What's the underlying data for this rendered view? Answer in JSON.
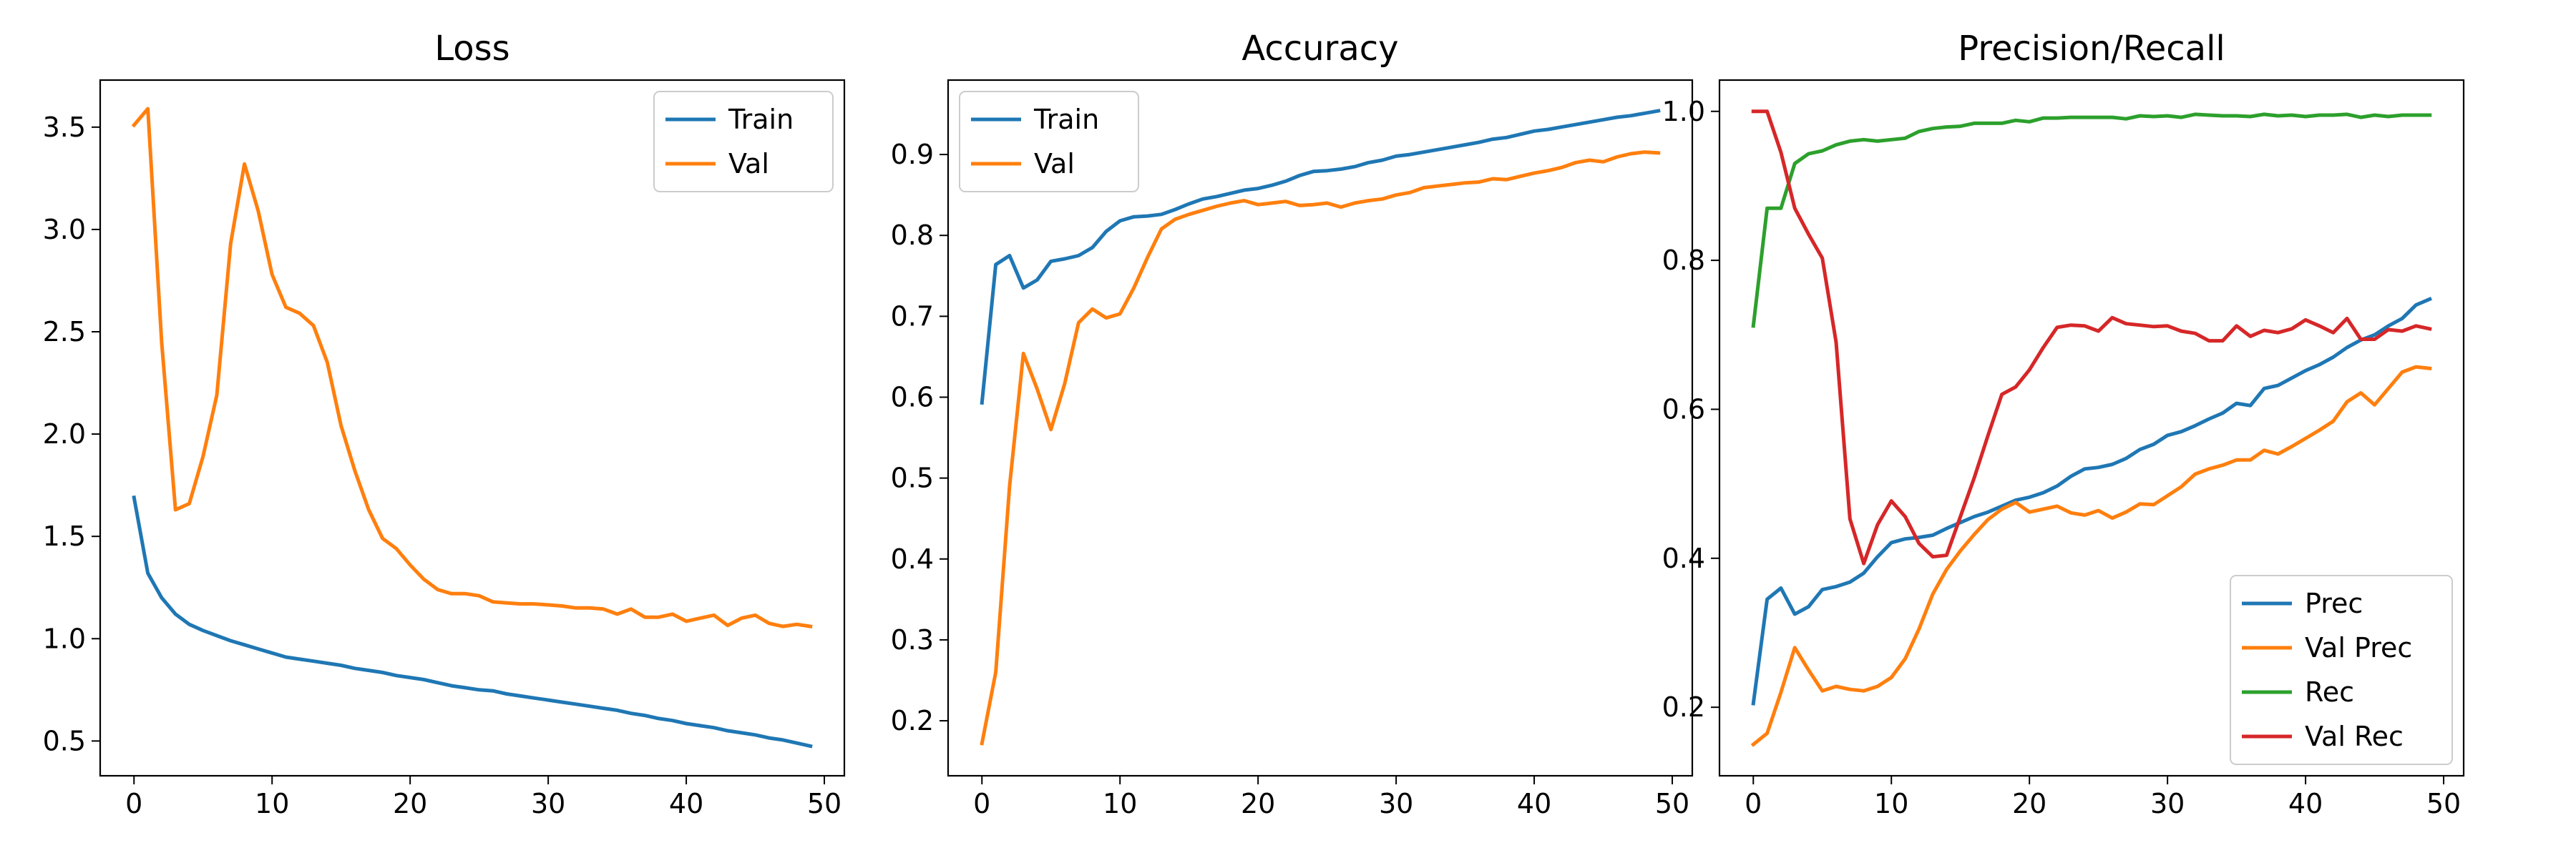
{
  "colors": {
    "blue": "#1f77b4",
    "orange": "#ff7f0e",
    "green": "#2ca02c",
    "red": "#d62728"
  },
  "chart_data": [
    {
      "type": "line",
      "title": "Loss",
      "xlabel": "",
      "ylabel": "",
      "xlim": [
        -2.45,
        51.45
      ],
      "ylim": [
        0.33,
        3.73
      ],
      "xticks": [
        0,
        10,
        20,
        30,
        40,
        50
      ],
      "yticks": [
        0.5,
        1.0,
        1.5,
        2.0,
        2.5,
        3.0,
        3.5
      ],
      "ytick_labels": [
        "0.5",
        "1.0",
        "1.5",
        "2.0",
        "2.5",
        "3.0",
        "3.5"
      ],
      "legend_position": "upper right",
      "x": [
        0,
        1,
        2,
        3,
        4,
        5,
        6,
        7,
        8,
        9,
        10,
        11,
        12,
        13,
        14,
        15,
        16,
        17,
        18,
        19,
        20,
        21,
        22,
        23,
        24,
        25,
        26,
        27,
        28,
        29,
        30,
        31,
        32,
        33,
        34,
        35,
        36,
        37,
        38,
        39,
        40,
        41,
        42,
        43,
        44,
        45,
        46,
        47,
        48,
        49
      ],
      "series": [
        {
          "name": "Train",
          "color": "#1f77b4",
          "values": [
            1.69,
            1.32,
            1.2,
            1.12,
            1.07,
            1.04,
            1.015,
            0.99,
            0.97,
            0.95,
            0.93,
            0.91,
            0.9,
            0.89,
            0.88,
            0.87,
            0.855,
            0.845,
            0.835,
            0.82,
            0.81,
            0.8,
            0.785,
            0.77,
            0.76,
            0.75,
            0.745,
            0.73,
            0.72,
            0.71,
            0.7,
            0.69,
            0.68,
            0.67,
            0.66,
            0.65,
            0.635,
            0.625,
            0.61,
            0.6,
            0.585,
            0.575,
            0.565,
            0.55,
            0.54,
            0.53,
            0.515,
            0.505,
            0.49,
            0.475
          ]
        },
        {
          "name": "Val",
          "color": "#ff7f0e",
          "values": [
            3.51,
            3.59,
            2.45,
            1.63,
            1.66,
            1.89,
            2.19,
            2.93,
            3.32,
            3.09,
            2.78,
            2.62,
            2.59,
            2.53,
            2.35,
            2.04,
            1.82,
            1.63,
            1.49,
            1.44,
            1.36,
            1.29,
            1.24,
            1.22,
            1.22,
            1.21,
            1.18,
            1.175,
            1.17,
            1.17,
            1.165,
            1.16,
            1.15,
            1.15,
            1.145,
            1.12,
            1.145,
            1.105,
            1.105,
            1.12,
            1.085,
            1.1,
            1.115,
            1.065,
            1.1,
            1.115,
            1.075,
            1.06,
            1.07,
            1.06
          ]
        }
      ]
    },
    {
      "type": "line",
      "title": "Accuracy",
      "xlabel": "",
      "ylabel": "",
      "xlim": [
        -2.45,
        51.45
      ],
      "ylim": [
        0.132,
        0.992
      ],
      "xticks": [
        0,
        10,
        20,
        30,
        40,
        50
      ],
      "yticks": [
        0.2,
        0.3,
        0.4,
        0.5,
        0.6,
        0.7,
        0.8,
        0.9
      ],
      "ytick_labels": [
        "0.2",
        "0.3",
        "0.4",
        "0.5",
        "0.6",
        "0.7",
        "0.8",
        "0.9"
      ],
      "legend_position": "upper left",
      "x": [
        0,
        1,
        2,
        3,
        4,
        5,
        6,
        7,
        8,
        9,
        10,
        11,
        12,
        13,
        14,
        15,
        16,
        17,
        18,
        19,
        20,
        21,
        22,
        23,
        24,
        25,
        26,
        27,
        28,
        29,
        30,
        31,
        32,
        33,
        34,
        35,
        36,
        37,
        38,
        39,
        40,
        41,
        42,
        43,
        44,
        45,
        46,
        47,
        48,
        49
      ],
      "series": [
        {
          "name": "Train",
          "color": "#1f77b4",
          "values": [
            0.593,
            0.764,
            0.775,
            0.735,
            0.745,
            0.768,
            0.771,
            0.775,
            0.785,
            0.805,
            0.818,
            0.823,
            0.824,
            0.826,
            0.832,
            0.839,
            0.845,
            0.848,
            0.852,
            0.856,
            0.858,
            0.862,
            0.867,
            0.874,
            0.879,
            0.88,
            0.882,
            0.885,
            0.89,
            0.893,
            0.898,
            0.9,
            0.903,
            0.906,
            0.909,
            0.912,
            0.915,
            0.919,
            0.921,
            0.925,
            0.929,
            0.931,
            0.934,
            0.937,
            0.94,
            0.943,
            0.946,
            0.948,
            0.951,
            0.954
          ]
        },
        {
          "name": "Val",
          "color": "#ff7f0e",
          "values": [
            0.172,
            0.26,
            0.49,
            0.654,
            0.61,
            0.56,
            0.617,
            0.692,
            0.709,
            0.698,
            0.703,
            0.735,
            0.773,
            0.808,
            0.82,
            0.826,
            0.831,
            0.836,
            0.84,
            0.843,
            0.838,
            0.84,
            0.842,
            0.837,
            0.838,
            0.84,
            0.835,
            0.84,
            0.843,
            0.845,
            0.85,
            0.853,
            0.859,
            0.861,
            0.863,
            0.865,
            0.866,
            0.87,
            0.869,
            0.873,
            0.877,
            0.88,
            0.884,
            0.89,
            0.893,
            0.891,
            0.897,
            0.901,
            0.903,
            0.902
          ]
        }
      ]
    },
    {
      "type": "line",
      "title": "Precision/Recall",
      "xlabel": "",
      "ylabel": "",
      "xlim": [
        -2.45,
        51.45
      ],
      "ylim": [
        0.108,
        1.042
      ],
      "xticks": [
        0,
        10,
        20,
        30,
        40,
        50
      ],
      "yticks": [
        0.2,
        0.4,
        0.6,
        0.8,
        1.0
      ],
      "ytick_labels": [
        "0.2",
        "0.4",
        "0.6",
        "0.8",
        "1.0"
      ],
      "legend_position": "lower right",
      "x": [
        0,
        1,
        2,
        3,
        4,
        5,
        6,
        7,
        8,
        9,
        10,
        11,
        12,
        13,
        14,
        15,
        16,
        17,
        18,
        19,
        20,
        21,
        22,
        23,
        24,
        25,
        26,
        27,
        28,
        29,
        30,
        31,
        32,
        33,
        34,
        35,
        36,
        37,
        38,
        39,
        40,
        41,
        42,
        43,
        44,
        45,
        46,
        47,
        48,
        49
      ],
      "series": [
        {
          "name": "Prec",
          "color": "#1f77b4",
          "values": [
            0.205,
            0.345,
            0.36,
            0.325,
            0.335,
            0.358,
            0.362,
            0.368,
            0.38,
            0.402,
            0.421,
            0.426,
            0.428,
            0.431,
            0.44,
            0.448,
            0.456,
            0.462,
            0.47,
            0.478,
            0.482,
            0.488,
            0.497,
            0.51,
            0.52,
            0.522,
            0.526,
            0.534,
            0.546,
            0.553,
            0.565,
            0.57,
            0.578,
            0.587,
            0.595,
            0.608,
            0.605,
            0.628,
            0.632,
            0.642,
            0.652,
            0.66,
            0.67,
            0.683,
            0.693,
            0.7,
            0.712,
            0.722,
            0.74,
            0.748
          ]
        },
        {
          "name": "Val Prec",
          "color": "#ff7f0e",
          "values": [
            0.15,
            0.165,
            0.22,
            0.28,
            0.25,
            0.222,
            0.228,
            0.224,
            0.222,
            0.228,
            0.24,
            0.265,
            0.305,
            0.352,
            0.385,
            0.41,
            0.432,
            0.452,
            0.466,
            0.475,
            0.462,
            0.466,
            0.47,
            0.461,
            0.458,
            0.464,
            0.454,
            0.462,
            0.473,
            0.472,
            0.484,
            0.496,
            0.513,
            0.52,
            0.525,
            0.532,
            0.532,
            0.545,
            0.54,
            0.55,
            0.561,
            0.572,
            0.584,
            0.61,
            0.622,
            0.606,
            0.628,
            0.65,
            0.657,
            0.655
          ]
        },
        {
          "name": "Rec",
          "color": "#2ca02c",
          "values": [
            0.712,
            0.87,
            0.87,
            0.93,
            0.943,
            0.947,
            0.955,
            0.96,
            0.962,
            0.96,
            0.962,
            0.964,
            0.973,
            0.977,
            0.979,
            0.98,
            0.984,
            0.984,
            0.984,
            0.988,
            0.986,
            0.991,
            0.991,
            0.992,
            0.992,
            0.992,
            0.992,
            0.99,
            0.994,
            0.993,
            0.994,
            0.992,
            0.996,
            0.995,
            0.994,
            0.994,
            0.993,
            0.996,
            0.994,
            0.995,
            0.993,
            0.995,
            0.995,
            0.996,
            0.992,
            0.995,
            0.993,
            0.995,
            0.995,
            0.995
          ]
        },
        {
          "name": "Val Rec",
          "color": "#d62728",
          "values": [
            1.0,
            1.0,
            0.945,
            0.87,
            0.835,
            0.803,
            0.69,
            0.453,
            0.393,
            0.445,
            0.477,
            0.456,
            0.42,
            0.402,
            0.404,
            0.456,
            0.508,
            0.565,
            0.62,
            0.63,
            0.653,
            0.683,
            0.71,
            0.713,
            0.712,
            0.705,
            0.723,
            0.715,
            0.713,
            0.711,
            0.712,
            0.705,
            0.702,
            0.692,
            0.692,
            0.712,
            0.698,
            0.706,
            0.703,
            0.708,
            0.72,
            0.712,
            0.703,
            0.722,
            0.694,
            0.694,
            0.707,
            0.705,
            0.712,
            0.708
          ]
        }
      ]
    }
  ]
}
